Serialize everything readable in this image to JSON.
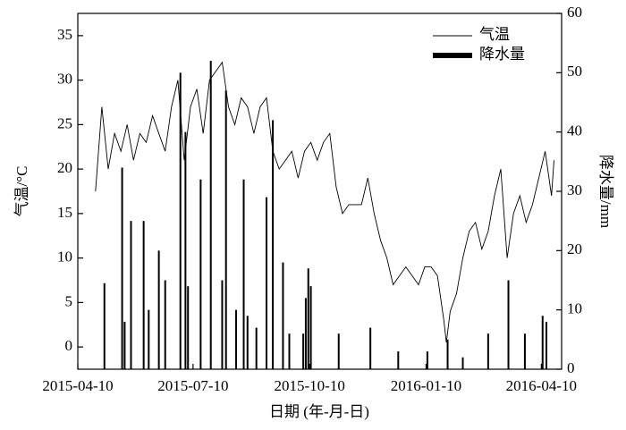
{
  "chart_data": {
    "type": "line-bar",
    "xlabel": "日期 (年-月-日)",
    "ylabel": "气温/°C",
    "y2label": "降水量/mm",
    "xlim": [
      "2015-04-10",
      "2016-04-26"
    ],
    "xticks": [
      "2015-04-10",
      "2015-07-10",
      "2015-10-10",
      "2016-01-10",
      "2016-04-10"
    ],
    "ylim": [
      -2.5,
      37.5
    ],
    "yticks": [
      0,
      5,
      10,
      15,
      20,
      25,
      30,
      35
    ],
    "y2lim": [
      0,
      60
    ],
    "y2ticks": [
      0,
      10,
      20,
      30,
      40,
      50,
      60
    ],
    "legend": "upper right",
    "series": [
      {
        "name": "气温",
        "type": "line",
        "color": "#000000",
        "x": [
          "2015-04-24",
          "2015-04-29",
          "2015-05-04",
          "2015-05-09",
          "2015-05-14",
          "2015-05-19",
          "2015-05-24",
          "2015-05-29",
          "2015-06-03",
          "2015-06-08",
          "2015-06-13",
          "2015-06-18",
          "2015-06-23",
          "2015-06-28",
          "2015-07-03",
          "2015-07-08",
          "2015-07-13",
          "2015-07-18",
          "2015-07-23",
          "2015-07-28",
          "2015-08-02",
          "2015-08-07",
          "2015-08-12",
          "2015-08-17",
          "2015-08-22",
          "2015-08-27",
          "2015-09-01",
          "2015-09-06",
          "2015-09-11",
          "2015-09-16",
          "2015-09-21",
          "2015-09-26",
          "2015-10-01",
          "2015-10-06",
          "2015-10-11",
          "2015-10-16",
          "2015-10-21",
          "2015-10-26",
          "2015-10-31",
          "2015-11-05",
          "2015-11-10",
          "2015-11-15",
          "2015-11-20",
          "2015-11-25",
          "2015-11-30",
          "2015-12-05",
          "2015-12-10",
          "2015-12-15",
          "2015-12-20",
          "2015-12-25",
          "2015-12-30",
          "2016-01-04",
          "2016-01-09",
          "2016-01-14",
          "2016-01-19",
          "2016-01-24",
          "2016-01-26",
          "2016-01-29",
          "2016-02-03",
          "2016-02-08",
          "2016-02-13",
          "2016-02-18",
          "2016-02-23",
          "2016-02-28",
          "2016-03-04",
          "2016-03-09",
          "2016-03-14",
          "2016-03-19",
          "2016-03-24",
          "2016-03-29",
          "2016-04-03",
          "2016-04-08",
          "2016-04-13",
          "2016-04-18",
          "2016-04-20"
        ],
        "values": [
          17.5,
          27,
          20,
          24,
          22,
          25,
          21,
          24,
          23,
          26,
          24,
          22,
          27,
          30,
          21,
          27,
          29,
          24,
          30,
          31,
          32,
          27,
          25,
          28,
          27,
          24,
          27,
          28,
          22,
          20,
          21,
          22,
          19,
          22,
          23,
          21,
          23,
          24,
          18,
          15,
          16,
          16,
          16,
          19,
          15,
          12,
          10,
          7,
          8,
          9,
          8,
          7,
          9,
          9,
          8,
          3,
          0.5,
          4,
          6,
          10,
          13,
          14,
          11,
          13,
          17,
          20,
          10,
          15,
          17,
          14,
          16,
          19,
          22,
          17,
          21
        ]
      },
      {
        "name": "降水量",
        "type": "bar",
        "axis": "y2",
        "color": "#000000",
        "x": [
          "2015-05-01",
          "2015-05-15",
          "2015-05-17",
          "2015-05-22",
          "2015-06-01",
          "2015-06-05",
          "2015-06-13",
          "2015-06-18",
          "2015-06-30",
          "2015-07-04",
          "2015-07-06",
          "2015-07-16",
          "2015-07-24",
          "2015-08-02",
          "2015-08-05",
          "2015-08-13",
          "2015-08-19",
          "2015-08-22",
          "2015-08-29",
          "2015-09-06",
          "2015-09-11",
          "2015-09-19",
          "2015-09-24",
          "2015-10-05",
          "2015-10-07",
          "2015-10-09",
          "2015-10-11",
          "2015-11-02",
          "2015-11-27",
          "2015-12-19",
          "2016-01-11",
          "2016-01-27",
          "2016-02-08",
          "2016-02-28",
          "2016-03-15",
          "2016-03-28",
          "2016-04-11",
          "2016-04-14"
        ],
        "values": [
          14.5,
          34,
          8,
          25,
          25,
          10,
          20,
          15,
          50,
          40,
          14,
          32,
          52,
          15,
          47,
          10,
          32,
          9,
          7,
          29,
          42,
          18,
          6,
          6,
          12,
          17,
          14,
          6,
          7,
          3,
          3,
          5,
          2,
          6,
          15,
          6,
          9,
          8
        ]
      }
    ]
  }
}
